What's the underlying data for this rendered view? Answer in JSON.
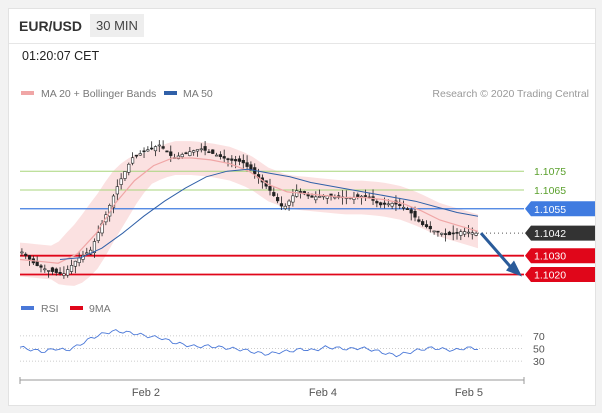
{
  "header": {
    "pair": "EUR/USD",
    "timeframe": "30 MIN"
  },
  "clock": "01:20:07 CET",
  "legend": {
    "ma_bands": "MA 20 + Bollinger Bands",
    "ma50": "MA 50",
    "source": "Research © 2020 Trading Central"
  },
  "rsi_legend": {
    "rsi": "RSI",
    "ma": "9MA"
  },
  "colors": {
    "resistance": "#a8d57c",
    "pivot": "#3f7be0",
    "support": "#e0061a",
    "last": "#333333",
    "ma20": "#f0a6a6",
    "ma50": "#3060a8",
    "band": "#fbe1e1",
    "rsi": "#4a78d8",
    "forecast_arrow": "#2a5b9a"
  },
  "chart_data": {
    "type": "candlestick",
    "title": "",
    "instrument": "EUR/USD",
    "interval": "30 MIN",
    "y_range": [
      1.1016,
      1.1098
    ],
    "x_ticks": [
      "Feb 2",
      "Feb 4",
      "Feb 5"
    ],
    "price_labels": [
      {
        "label": "1.1075",
        "value": 1.1075,
        "kind": "resistance"
      },
      {
        "label": "1.1065",
        "value": 1.1065,
        "kind": "resistance"
      },
      {
        "label": "1.1055",
        "value": 1.1055,
        "kind": "pivot"
      },
      {
        "label": "1.1042",
        "value": 1.1042,
        "kind": "last"
      },
      {
        "label": "1.1030",
        "value": 1.103,
        "kind": "support"
      },
      {
        "label": "1.1020",
        "value": 1.102,
        "kind": "support"
      }
    ],
    "price_path": [
      1.1032,
      1.1025,
      1.1022,
      1.102,
      1.1028,
      1.1033,
      1.105,
      1.1068,
      1.1082,
      1.1086,
      1.1089,
      1.1082,
      1.1085,
      1.1087,
      1.1084,
      1.1081,
      1.108,
      1.1073,
      1.1065,
      1.1055,
      1.1065,
      1.1061,
      1.1062,
      1.1061,
      1.1061,
      1.1062,
      1.1057,
      1.1058,
      1.1055,
      1.1047,
      1.1043,
      1.1041,
      1.1043,
      1.1042
    ],
    "ma20_path": [
      1.1028,
      1.1027,
      1.1026,
      1.1031,
      1.1042,
      1.1058,
      1.107,
      1.1078,
      1.1082,
      1.1082,
      1.1081,
      1.1079,
      1.1075,
      1.1068,
      1.1064,
      1.1063,
      1.1062,
      1.1061,
      1.1061,
      1.106,
      1.1058,
      1.1054,
      1.1049,
      1.1046,
      1.1043
    ],
    "ma50_path": [
      1.1028,
      1.1029,
      1.1034,
      1.1042,
      1.1051,
      1.1059,
      1.1066,
      1.1072,
      1.1075,
      1.1076,
      1.1074,
      1.1072,
      1.1069,
      1.1067,
      1.1065,
      1.1063,
      1.1061,
      1.1059,
      1.1056,
      1.1053,
      1.1051
    ],
    "rsi": {
      "levels": [
        "70",
        "50",
        "30"
      ],
      "level_values": [
        70,
        50,
        30
      ],
      "values": [
        52,
        48,
        45,
        50,
        47,
        55,
        66,
        73,
        78,
        76,
        73,
        69,
        67,
        60,
        56,
        53,
        54,
        52,
        50,
        48,
        44,
        41,
        44,
        46,
        49,
        47,
        52,
        51,
        49,
        51,
        48,
        43,
        39,
        43,
        48,
        51,
        49,
        47,
        51,
        50
      ]
    }
  }
}
